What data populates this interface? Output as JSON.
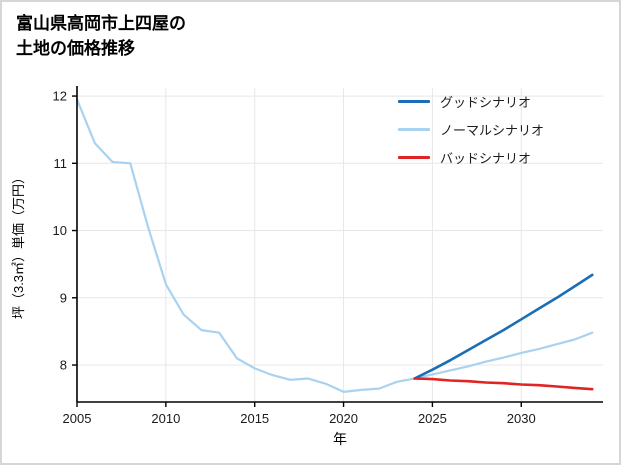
{
  "page": {
    "background": "#ffffff",
    "border_color": "#d6d6d6"
  },
  "title": {
    "line1": "富山県高岡市上四屋の",
    "line2": "土地の価格推移"
  },
  "chart_data": {
    "type": "line",
    "title": "富山県高岡市上四屋の土地の価格推移",
    "xlabel": "年",
    "ylabel": "坪（3.3㎡）単価（万円）",
    "xlim": [
      2005,
      2034.6
    ],
    "ylim": [
      7.45,
      12.12
    ],
    "xticks": [
      2005,
      2010,
      2015,
      2020,
      2025,
      2030
    ],
    "yticks": [
      8,
      9,
      10,
      11,
      12
    ],
    "grid": true,
    "grid_color": "#e7e7e7",
    "axis_color": "#000000",
    "tick_label_color": "#1a1a1a",
    "legend_position": "top-right",
    "series": [
      {
        "name": "グッドシナリオ",
        "color": "#1b6db6",
        "width": 2.6,
        "x": [
          2024,
          2025,
          2026,
          2027,
          2028,
          2029,
          2030,
          2031,
          2032,
          2033,
          2034
        ],
        "y": [
          7.8,
          7.93,
          8.07,
          8.22,
          8.37,
          8.52,
          8.68,
          8.84,
          9.0,
          9.17,
          9.34
        ]
      },
      {
        "name": "ノーマルシナリオ",
        "color": "#a9d2f0",
        "width": 2.2,
        "x": [
          2005,
          2006,
          2007,
          2008,
          2009,
          2010,
          2011,
          2012,
          2013,
          2014,
          2015,
          2016,
          2017,
          2018,
          2019,
          2020,
          2021,
          2022,
          2023,
          2024,
          2025,
          2026,
          2027,
          2028,
          2029,
          2030,
          2031,
          2032,
          2033,
          2034
        ],
        "y": [
          11.95,
          11.3,
          11.02,
          11.0,
          10.05,
          9.2,
          8.75,
          8.52,
          8.48,
          8.1,
          7.95,
          7.85,
          7.78,
          7.8,
          7.72,
          7.6,
          7.63,
          7.65,
          7.75,
          7.8,
          7.86,
          7.92,
          7.98,
          8.05,
          8.11,
          8.18,
          8.24,
          8.31,
          8.38,
          8.48
        ]
      },
      {
        "name": "バッドシナリオ",
        "color": "#e02423",
        "width": 2.6,
        "x": [
          2024,
          2025,
          2026,
          2027,
          2028,
          2029,
          2030,
          2031,
          2032,
          2033,
          2034
        ],
        "y": [
          7.8,
          7.79,
          7.77,
          7.76,
          7.74,
          7.73,
          7.71,
          7.7,
          7.68,
          7.66,
          7.64
        ]
      }
    ]
  }
}
